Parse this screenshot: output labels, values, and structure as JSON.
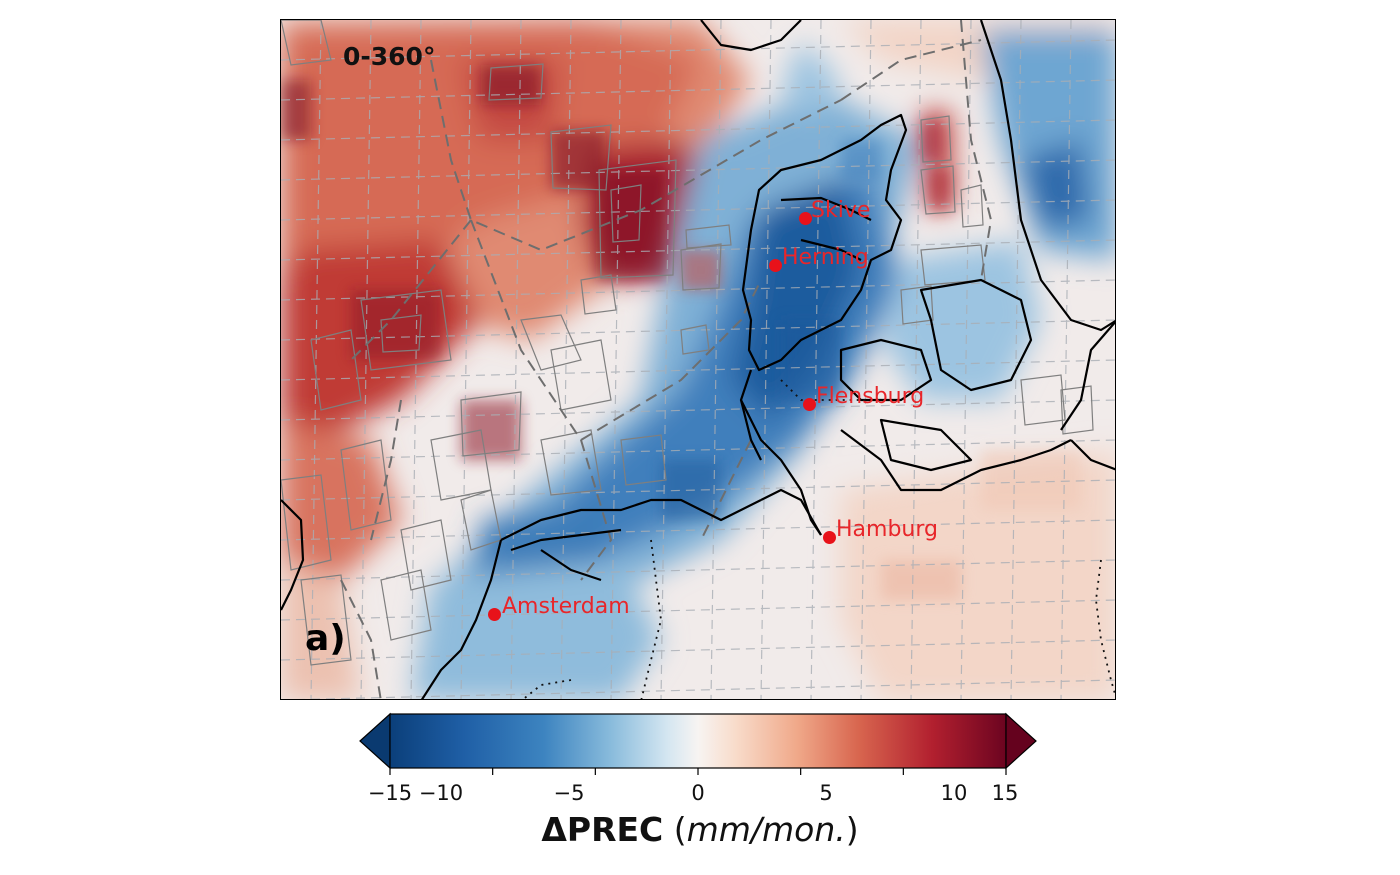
{
  "map": {
    "sector_label": "0-360°",
    "panel_label": "a)",
    "cities": [
      {
        "name": "Skive"
      },
      {
        "name": "Herning"
      },
      {
        "name": "Flensburg"
      },
      {
        "name": "Hamburg"
      },
      {
        "name": "Amsterdam"
      }
    ],
    "colors": {
      "city": "#e8121a",
      "coast": "#000000",
      "grid": "#9aa0a8",
      "border": "#6e6e6e"
    }
  },
  "colorbar": {
    "title_symbol": "ΔPREC",
    "title_units": "mm/mon.",
    "ticks": [
      "−15",
      "−10",
      "−5",
      "0",
      "5",
      "10",
      "15"
    ],
    "range": [
      -15,
      15
    ],
    "colormap": "RdBu_r",
    "extend": "both"
  }
}
